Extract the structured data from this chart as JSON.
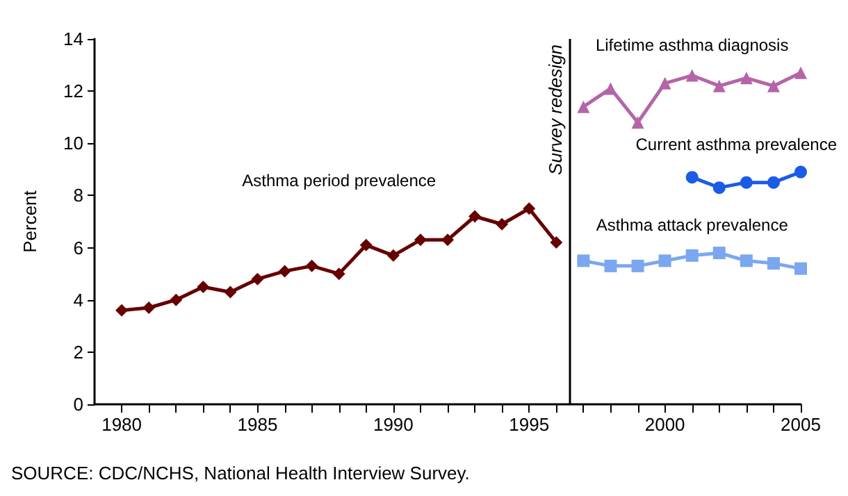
{
  "chart_data": {
    "type": "line",
    "ylabel": "Percent",
    "xlim": [
      1979,
      2005
    ],
    "ylim": [
      0,
      14
    ],
    "yticks": [
      0,
      2,
      4,
      6,
      8,
      10,
      12,
      14
    ],
    "xticks": [
      1980,
      {
        "value": 1981,
        "label": null
      },
      {
        "value": 1982,
        "label": null
      },
      {
        "value": 1983,
        "label": null
      },
      {
        "value": 1984,
        "label": null
      },
      1985,
      {
        "value": 1986,
        "label": null
      },
      {
        "value": 1987,
        "label": null
      },
      {
        "value": 1988,
        "label": null
      },
      {
        "value": 1989,
        "label": null
      },
      1990,
      {
        "value": 1991,
        "label": null
      },
      {
        "value": 1992,
        "label": null
      },
      {
        "value": 1993,
        "label": null
      },
      {
        "value": 1994,
        "label": null
      },
      1995,
      {
        "value": 1996,
        "label": null
      },
      {
        "value": 1997,
        "label": null
      },
      {
        "value": 1998,
        "label": null
      },
      {
        "value": 1999,
        "label": null
      },
      2000,
      {
        "value": 2001,
        "label": null
      },
      {
        "value": 2002,
        "label": null
      },
      {
        "value": 2003,
        "label": null
      },
      {
        "value": 2004,
        "label": null
      },
      2005
    ],
    "series": [
      {
        "name": "Asthma period prevalence",
        "color": "#660000",
        "marker": "diamond",
        "x": [
          1980,
          1981,
          1982,
          1983,
          1984,
          1985,
          1986,
          1987,
          1988,
          1989,
          1990,
          1991,
          1992,
          1993,
          1994,
          1995,
          1996
        ],
        "values": [
          3.6,
          3.7,
          4.0,
          4.5,
          4.3,
          4.8,
          5.1,
          5.3,
          5.0,
          6.1,
          5.7,
          6.3,
          6.3,
          7.2,
          6.9,
          7.5,
          6.2
        ]
      },
      {
        "name": "Lifetime asthma diagnosis",
        "color": "#b565a7",
        "marker": "triangle",
        "x": [
          1997,
          1998,
          1999,
          2000,
          2001,
          2002,
          2003,
          2004,
          2005
        ],
        "values": [
          11.4,
          12.1,
          10.8,
          12.3,
          12.6,
          12.2,
          12.5,
          12.2,
          12.7
        ]
      },
      {
        "name": "Current asthma prevalence",
        "color": "#1a5ce6",
        "marker": "circle",
        "x": [
          2001,
          2002,
          2003,
          2004,
          2005
        ],
        "values": [
          8.7,
          8.3,
          8.5,
          8.5,
          8.9
        ]
      },
      {
        "name": "Asthma attack prevalence",
        "color": "#7ba7f0",
        "marker": "square",
        "x": [
          1997,
          1998,
          1999,
          2000,
          2001,
          2002,
          2003,
          2004,
          2005
        ],
        "values": [
          5.5,
          5.3,
          5.3,
          5.5,
          5.7,
          5.8,
          5.5,
          5.4,
          5.2
        ]
      }
    ],
    "ref_lines": [
      {
        "axis": "x",
        "value": 1996.5,
        "label": "Survey redesign",
        "color": "#000000"
      }
    ],
    "annotations": [
      "SOURCE: CDC/NCHS, National Health Interview Survey."
    ],
    "grid": false,
    "legend": false
  }
}
